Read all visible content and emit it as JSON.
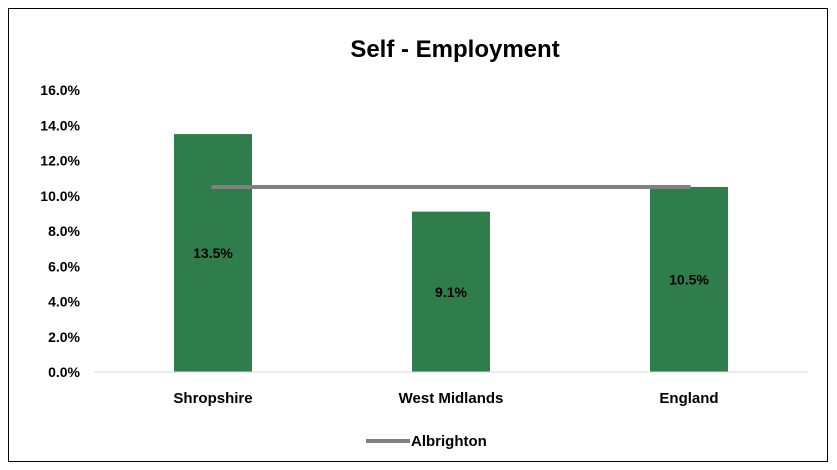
{
  "chart_data": {
    "type": "bar",
    "title": "Self - Employment",
    "categories": [
      "Shropshire",
      "West Midlands",
      "England"
    ],
    "series": [
      {
        "name": "",
        "type": "bar",
        "values": [
          13.5,
          9.1,
          10.5
        ],
        "labels": [
          "13.5%",
          "9.1%",
          "10.5%"
        ],
        "color": "#2E7D4A"
      },
      {
        "name": "Albrighton",
        "type": "line",
        "values": [
          10.5,
          10.5,
          10.5
        ],
        "color": "#808080"
      }
    ],
    "y_ticks": [
      "0.0%",
      "2.0%",
      "4.0%",
      "6.0%",
      "8.0%",
      "10.0%",
      "12.0%",
      "14.0%",
      "16.0%"
    ],
    "ylim": [
      0,
      16
    ],
    "xlabel": "",
    "ylabel": "",
    "grid": false,
    "legend_position": "bottom"
  }
}
